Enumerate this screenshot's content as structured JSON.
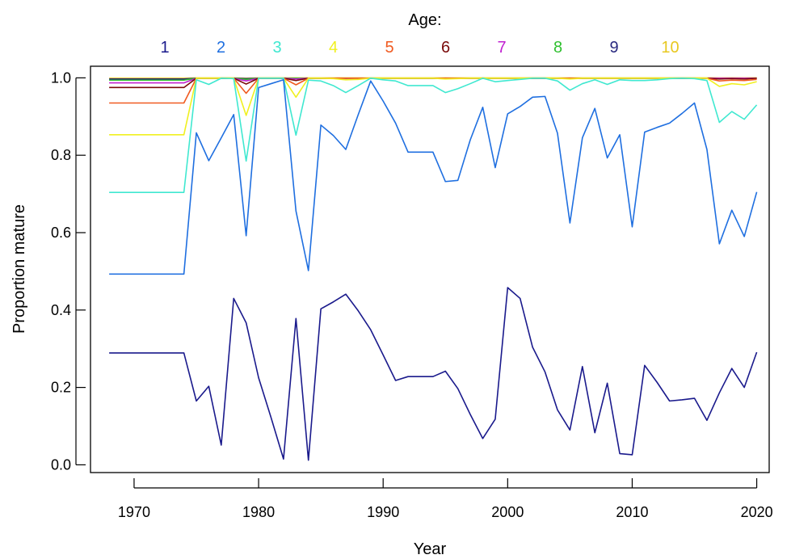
{
  "chart_data": {
    "type": "line",
    "xlabel": "Year",
    "ylabel": "Proportion mature",
    "legend_title": "Age:",
    "legend_position": "top",
    "grid": false,
    "xlim": [
      1966.5,
      2021
    ],
    "ylim": [
      -0.02,
      1.03
    ],
    "x_ticks": [
      1970,
      1980,
      1990,
      2000,
      2010,
      2020
    ],
    "y_ticks": [
      0.0,
      0.2,
      0.4,
      0.6,
      0.8,
      1.0
    ],
    "y_tick_labels": [
      "0.0",
      "0.2",
      "0.4",
      "0.6",
      "0.8",
      "1.0"
    ],
    "x": [
      1968,
      1969,
      1970,
      1971,
      1972,
      1973,
      1974,
      1975,
      1976,
      1977,
      1978,
      1979,
      1980,
      1981,
      1982,
      1983,
      1984,
      1985,
      1986,
      1987,
      1988,
      1989,
      1990,
      1991,
      1992,
      1993,
      1994,
      1995,
      1996,
      1997,
      1998,
      1999,
      2000,
      2001,
      2002,
      2003,
      2004,
      2005,
      2006,
      2007,
      2008,
      2009,
      2010,
      2011,
      2012,
      2013,
      2014,
      2015,
      2016,
      2017,
      2018,
      2019,
      2020
    ],
    "series": [
      {
        "name": "1",
        "color": "#1a1a8c",
        "values": [
          0.289,
          0.289,
          0.289,
          0.289,
          0.289,
          0.289,
          0.289,
          0.165,
          0.203,
          0.051,
          0.43,
          0.367,
          0.225,
          0.122,
          0.015,
          0.378,
          0.012,
          0.403,
          0.421,
          0.441,
          0.398,
          0.349,
          0.284,
          0.218,
          0.228,
          0.228,
          0.228,
          0.242,
          0.197,
          0.13,
          0.068,
          0.118,
          0.458,
          0.43,
          0.304,
          0.24,
          0.142,
          0.09,
          0.254,
          0.083,
          0.211,
          0.029,
          0.026,
          0.257,
          0.213,
          0.165,
          0.168,
          0.172,
          0.115,
          0.186,
          0.249,
          0.2,
          0.291
        ]
      },
      {
        "name": "2",
        "color": "#1f6fe0",
        "values": [
          0.493,
          0.493,
          0.493,
          0.493,
          0.493,
          0.493,
          0.493,
          0.858,
          0.786,
          0.845,
          0.905,
          0.592,
          0.975,
          0.985,
          0.995,
          0.656,
          0.502,
          0.878,
          0.851,
          0.815,
          0.905,
          0.992,
          0.94,
          0.883,
          0.808,
          0.808,
          0.808,
          0.732,
          0.735,
          0.84,
          0.924,
          0.768,
          0.907,
          0.926,
          0.95,
          0.952,
          0.857,
          0.625,
          0.845,
          0.921,
          0.793,
          0.853,
          0.615,
          0.86,
          0.872,
          0.883,
          0.908,
          0.935,
          0.815,
          0.571,
          0.658,
          0.59,
          0.705
        ]
      },
      {
        "name": "3",
        "color": "#40e8d0",
        "values": [
          0.704,
          0.704,
          0.704,
          0.704,
          0.704,
          0.704,
          0.704,
          0.995,
          0.983,
          0.999,
          0.998,
          0.785,
          0.999,
          0.999,
          0.999,
          0.852,
          0.994,
          0.992,
          0.98,
          0.962,
          0.98,
          0.999,
          0.995,
          0.992,
          0.98,
          0.98,
          0.98,
          0.962,
          0.972,
          0.985,
          0.999,
          0.99,
          0.993,
          0.996,
          0.999,
          0.999,
          0.992,
          0.968,
          0.985,
          0.995,
          0.983,
          0.995,
          0.993,
          0.993,
          0.995,
          0.998,
          0.999,
          0.998,
          0.993,
          0.885,
          0.913,
          0.893,
          0.93
        ]
      },
      {
        "name": "4",
        "color": "#f0f020",
        "values": [
          0.853,
          0.853,
          0.853,
          0.853,
          0.853,
          0.853,
          0.853,
          0.999,
          0.999,
          0.999,
          0.999,
          0.903,
          0.999,
          0.999,
          0.999,
          0.95,
          0.999,
          0.999,
          0.998,
          0.995,
          0.996,
          0.999,
          0.999,
          0.999,
          0.999,
          0.999,
          0.999,
          0.997,
          0.998,
          0.999,
          0.999,
          0.999,
          0.999,
          0.999,
          0.999,
          0.999,
          0.999,
          0.997,
          0.999,
          0.999,
          0.999,
          0.999,
          0.999,
          0.999,
          0.999,
          0.999,
          0.999,
          0.999,
          0.999,
          0.978,
          0.985,
          0.982,
          0.99
        ]
      },
      {
        "name": "5",
        "color": "#f05a20",
        "values": [
          0.935,
          0.935,
          0.935,
          0.935,
          0.935,
          0.935,
          0.935,
          0.999,
          0.999,
          0.999,
          0.999,
          0.96,
          0.999,
          0.999,
          0.999,
          0.982,
          0.999,
          0.999,
          0.999,
          0.999,
          0.999,
          0.999,
          0.999,
          0.999,
          0.999,
          0.999,
          0.999,
          0.999,
          0.999,
          0.999,
          0.999,
          0.999,
          0.999,
          0.999,
          0.999,
          0.999,
          0.999,
          0.999,
          0.999,
          0.999,
          0.999,
          0.999,
          0.999,
          0.999,
          0.999,
          0.999,
          0.999,
          0.999,
          0.999,
          0.992,
          0.994,
          0.993,
          0.996
        ]
      },
      {
        "name": "6",
        "color": "#7a0a0a",
        "values": [
          0.975,
          0.975,
          0.975,
          0.975,
          0.975,
          0.975,
          0.975,
          0.999,
          0.999,
          0.999,
          0.999,
          0.984,
          0.999,
          0.999,
          0.999,
          0.993,
          0.999,
          0.999,
          0.999,
          0.999,
          0.999,
          0.999,
          0.999,
          0.999,
          0.999,
          0.999,
          0.999,
          0.999,
          0.999,
          0.999,
          0.999,
          0.999,
          0.999,
          0.999,
          0.999,
          0.999,
          0.999,
          0.999,
          0.999,
          0.999,
          0.999,
          0.999,
          0.999,
          0.999,
          0.999,
          0.999,
          0.999,
          0.999,
          0.999,
          0.997,
          0.998,
          0.997,
          0.999
        ]
      },
      {
        "name": "7",
        "color": "#c020d0",
        "values": [
          0.987,
          0.987,
          0.987,
          0.987,
          0.987,
          0.987,
          0.987,
          0.999,
          0.999,
          0.999,
          0.999,
          0.992,
          0.999,
          0.999,
          0.999,
          0.997,
          0.999,
          0.999,
          0.999,
          0.999,
          0.999,
          0.999,
          0.999,
          0.999,
          0.999,
          0.999,
          0.999,
          0.999,
          0.999,
          0.999,
          0.999,
          0.999,
          0.999,
          0.999,
          0.999,
          0.999,
          0.999,
          0.999,
          0.999,
          0.999,
          0.999,
          0.999,
          0.999,
          0.999,
          0.999,
          0.999,
          0.999,
          0.999,
          0.999,
          0.999,
          0.999,
          0.999,
          0.999
        ]
      },
      {
        "name": "8",
        "color": "#30c030",
        "values": [
          0.994,
          0.994,
          0.994,
          0.994,
          0.994,
          0.994,
          0.994,
          0.999,
          0.999,
          0.999,
          0.999,
          0.996,
          0.999,
          0.999,
          0.999,
          0.999,
          0.999,
          0.999,
          0.999,
          0.999,
          0.999,
          0.999,
          0.999,
          0.999,
          0.999,
          0.999,
          0.999,
          0.999,
          0.999,
          0.999,
          0.999,
          0.999,
          0.999,
          0.999,
          0.999,
          0.999,
          0.999,
          0.999,
          0.999,
          0.999,
          0.999,
          0.999,
          0.999,
          0.999,
          0.999,
          0.999,
          0.999,
          0.999,
          0.999,
          0.999,
          0.999,
          0.999,
          0.999
        ]
      },
      {
        "name": "9",
        "color": "#2a2a80",
        "values": [
          0.997,
          0.997,
          0.997,
          0.997,
          0.997,
          0.997,
          0.997,
          0.999,
          0.999,
          0.999,
          0.999,
          0.998,
          0.999,
          0.999,
          0.999,
          0.999,
          0.999,
          0.999,
          0.999,
          0.999,
          0.999,
          0.999,
          0.999,
          0.999,
          0.999,
          0.999,
          0.999,
          0.999,
          0.999,
          0.999,
          0.999,
          0.999,
          0.999,
          0.999,
          0.999,
          0.999,
          0.999,
          0.999,
          0.999,
          0.999,
          0.999,
          0.999,
          0.999,
          0.999,
          0.999,
          0.999,
          0.999,
          0.999,
          0.999,
          0.999,
          0.999,
          0.999,
          0.999
        ]
      },
      {
        "name": "10",
        "color": "#e8c820",
        "values": [
          0.999,
          0.999,
          0.999,
          0.999,
          0.999,
          0.999,
          0.999,
          1.0,
          1.0,
          1.0,
          1.0,
          0.999,
          1.0,
          1.0,
          1.0,
          1.0,
          1.0,
          1.0,
          1.0,
          1.0,
          1.0,
          1.0,
          1.0,
          1.0,
          1.0,
          1.0,
          1.0,
          1.0,
          1.0,
          1.0,
          1.0,
          1.0,
          1.0,
          1.0,
          1.0,
          1.0,
          1.0,
          1.0,
          1.0,
          1.0,
          1.0,
          1.0,
          1.0,
          1.0,
          1.0,
          1.0,
          1.0,
          1.0,
          1.0,
          1.0,
          1.0,
          1.0,
          1.0
        ]
      }
    ]
  }
}
